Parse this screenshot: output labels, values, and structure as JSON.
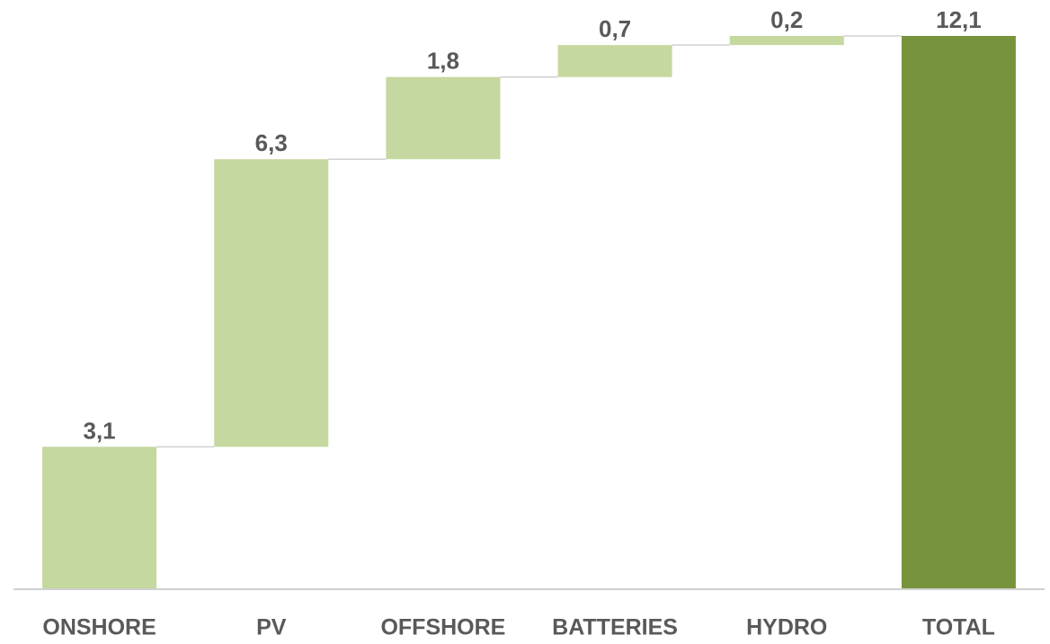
{
  "chart_data": {
    "type": "waterfall",
    "categories": [
      "ONSHORE",
      "PV",
      "OFFSHORE",
      "BATTERIES",
      "HYDRO",
      "TOTAL"
    ],
    "values": [
      3.1,
      6.3,
      1.8,
      0.7,
      0.2,
      12.1
    ],
    "value_labels": [
      "3,1",
      "6,3",
      "1,8",
      "0,7",
      "0,2",
      "12,1"
    ],
    "is_total": [
      false,
      false,
      false,
      false,
      false,
      true
    ],
    "colors": [
      "#c5d89f",
      "#c5d89f",
      "#c5d89f",
      "#c5d89f",
      "#c5d89f",
      "#77933c"
    ],
    "ylim": [
      0,
      12.1
    ]
  }
}
